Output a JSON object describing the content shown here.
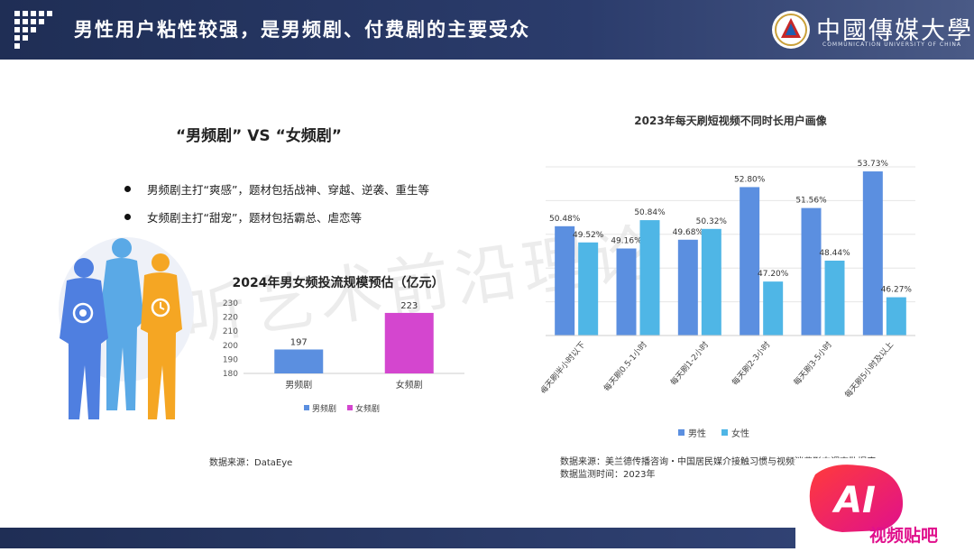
{
  "header": {
    "title": "男性用户粘性较强，是男频剧、付费剧的主要受众",
    "university_name": "中國傳媒大學",
    "university_sub": "COMMUNICATION UNIVERSITY OF CHINA"
  },
  "left": {
    "vs_title": "“男频剧”  VS  “女频剧”",
    "bullets": [
      "男频剧主打“爽感”，题材包括战神、穿越、逆袭、重生等",
      "女频剧主打“甜宠”，题材包括霸总、虐恋等"
    ],
    "source": "数据来源：DataEye"
  },
  "watermark": "听艺术前沿理论",
  "right": {
    "source_line1": "数据来源：美兰德传播咨询・中国居民媒介接触习惯与视频消费形态调查数据库",
    "source_line2": "数据监测时间：2023年"
  },
  "badge": {
    "ai": "AI",
    "text": "视频贴吧"
  },
  "colors": {
    "header_bg": "#1f2e55",
    "male_blue": "#5b8fe0",
    "female_blue": "#4fb6e6",
    "female_pink": "#d446cf",
    "person_left": "#4f7fe0",
    "person_mid": "#5aa9e6",
    "person_right": "#f5a623"
  },
  "chart_data": [
    {
      "type": "bar",
      "title": "2024年男女频投流规模预估（亿元）",
      "categories": [
        "男频剧",
        "女频剧"
      ],
      "values": [
        197,
        223
      ],
      "data_labels": [
        "197",
        "223"
      ],
      "ylim": [
        180,
        230
      ],
      "yticks": [
        "180",
        "190",
        "200",
        "210",
        "220",
        "230"
      ],
      "legend": [
        "男频剧",
        "女频剧"
      ],
      "legend_position": "bottom",
      "colors": [
        "#5b8fe0",
        "#d446cf"
      ]
    },
    {
      "type": "bar",
      "title": "2023年每天刷短视频不同时长用户画像",
      "categories": [
        "每天刷半小时以下",
        "每天刷0.5-1小时",
        "每天刷1-2小时",
        "每天刷2-3小时",
        "每天刷3-5小时",
        "每天刷5小时及以上"
      ],
      "series": [
        {
          "name": "男性",
          "values": [
            50.48,
            49.16,
            49.68,
            52.8,
            51.56,
            53.73
          ],
          "labels": [
            "50.48%",
            "49.16%",
            "49.68%",
            "52.80%",
            "51.56%",
            "53.73%"
          ],
          "color": "#5b8fe0"
        },
        {
          "name": "女性",
          "values": [
            49.52,
            50.84,
            50.32,
            47.2,
            48.44,
            46.27
          ],
          "labels": [
            "49.52%",
            "50.84%",
            "50.32%",
            "47.20%",
            "48.44%",
            "46.27%"
          ],
          "color": "#4fb6e6"
        }
      ],
      "ylim": [
        44,
        54
      ],
      "grid": true,
      "legend_position": "bottom"
    }
  ]
}
